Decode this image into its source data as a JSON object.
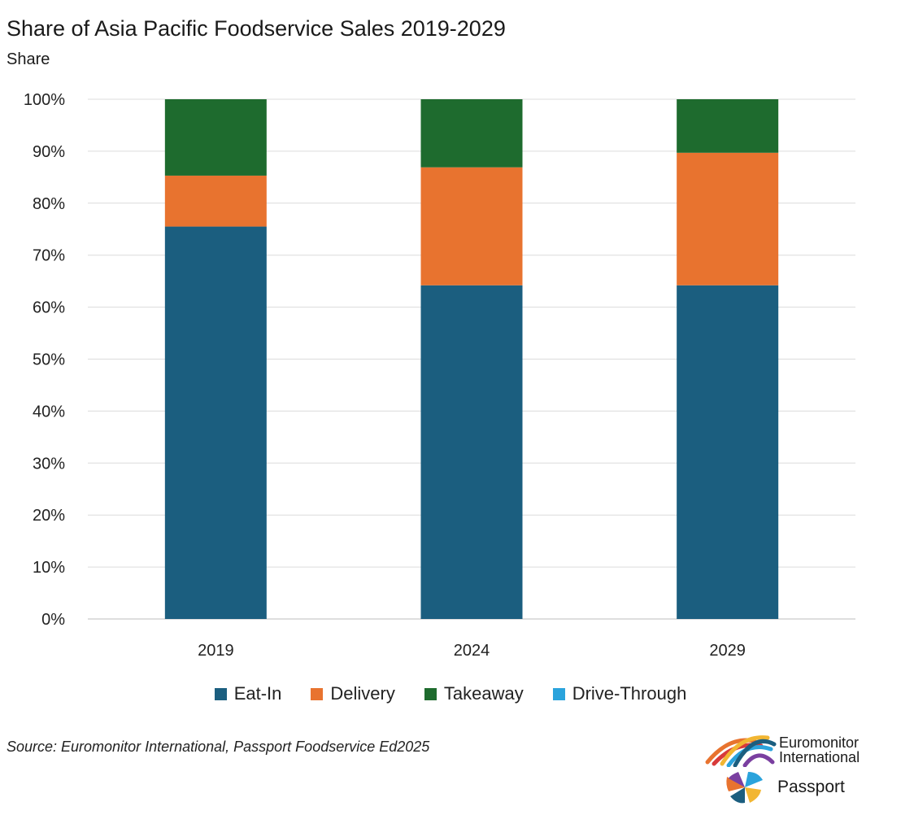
{
  "chart_data": {
    "type": "bar",
    "stacked": true,
    "title": "Share of Asia Pacific Foodservice Sales 2019-2029",
    "subtitle": "Share",
    "categories": [
      "2019",
      "2024",
      "2029"
    ],
    "series": [
      {
        "name": "Eat-In",
        "color": "#1b5e7f",
        "values": [
          75.5,
          64.2,
          64.2
        ]
      },
      {
        "name": "Delivery",
        "color": "#e8732f",
        "values": [
          9.8,
          22.7,
          25.5
        ]
      },
      {
        "name": "Takeaway",
        "color": "#1e6b2e",
        "values": [
          14.7,
          13.1,
          10.3
        ]
      },
      {
        "name": "Drive-Through",
        "color": "#2aa3dc",
        "values": [
          0,
          0,
          0
        ]
      }
    ],
    "ylim": [
      0,
      100
    ],
    "yticks": [
      "0%",
      "10%",
      "20%",
      "30%",
      "40%",
      "50%",
      "60%",
      "70%",
      "80%",
      "90%",
      "100%"
    ],
    "grid": true,
    "legend_position": "bottom"
  },
  "source": "Source: Euromonitor International, Passport Foodservice Ed2025",
  "logos": {
    "euromonitor_line1": "Euromonitor",
    "euromonitor_line2": "International",
    "passport": "Passport"
  }
}
